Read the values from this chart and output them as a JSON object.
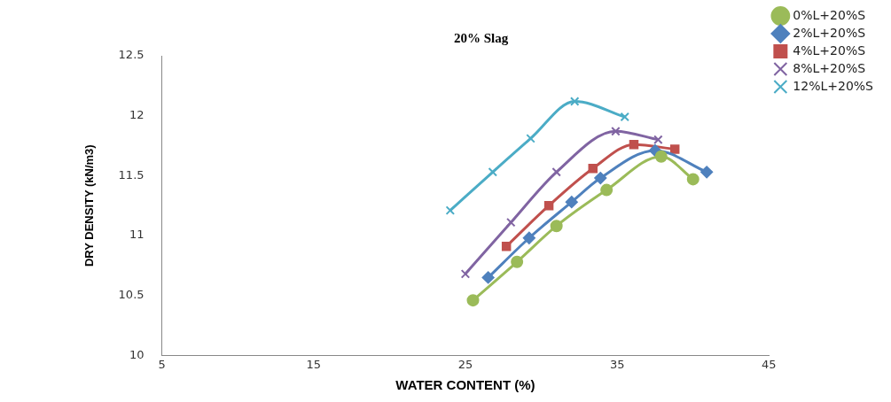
{
  "chart_data": {
    "type": "line",
    "title": "20% Slag",
    "xlabel": "WATER CONTENT (%)",
    "ylabel": "DRY DENSITY (kN/m3)",
    "xlim": [
      5,
      45
    ],
    "xticks": [
      5,
      15,
      25,
      35,
      45
    ],
    "ylim": [
      10,
      12.5
    ],
    "yticks": [
      {
        "value": 10,
        "label": "10"
      },
      10.5,
      {
        "value": 11,
        "label": "11"
      },
      11.5,
      {
        "value": 12,
        "label": "12"
      },
      12.5
    ],
    "grid": false,
    "legend": "top right",
    "series": [
      {
        "name": "0%L+20%S",
        "color": "#9bbb59",
        "marker": "circle",
        "x": [
          25.5,
          28.4,
          31.0,
          34.3,
          37.9,
          40.0
        ],
        "values": [
          10.46,
          10.78,
          11.08,
          11.38,
          11.66,
          11.47
        ]
      },
      {
        "name": "2%L+20%S",
        "color": "#4f81bd",
        "marker": "diamond",
        "x": [
          26.5,
          29.2,
          32.0,
          33.9,
          37.5,
          40.9
        ],
        "values": [
          10.65,
          10.98,
          11.28,
          11.48,
          11.71,
          11.53
        ]
      },
      {
        "name": "4%L+20%S",
        "color": "#c0504d",
        "marker": "square",
        "x": [
          27.7,
          30.5,
          33.4,
          36.1,
          38.8
        ],
        "values": [
          10.91,
          11.25,
          11.56,
          11.76,
          11.72
        ]
      },
      {
        "name": "8%L+20%S",
        "color": "#8064a2",
        "marker": "cross",
        "x": [
          25.0,
          28.0,
          31.0,
          34.9,
          37.7
        ],
        "values": [
          10.68,
          11.11,
          11.53,
          11.87,
          11.8
        ]
      },
      {
        "name": "12%L+20%S",
        "color": "#4bacc6",
        "marker": "cross",
        "x": [
          24.0,
          26.8,
          29.3,
          32.2,
          35.5
        ],
        "values": [
          11.21,
          11.53,
          11.81,
          12.12,
          11.99
        ]
      }
    ]
  }
}
